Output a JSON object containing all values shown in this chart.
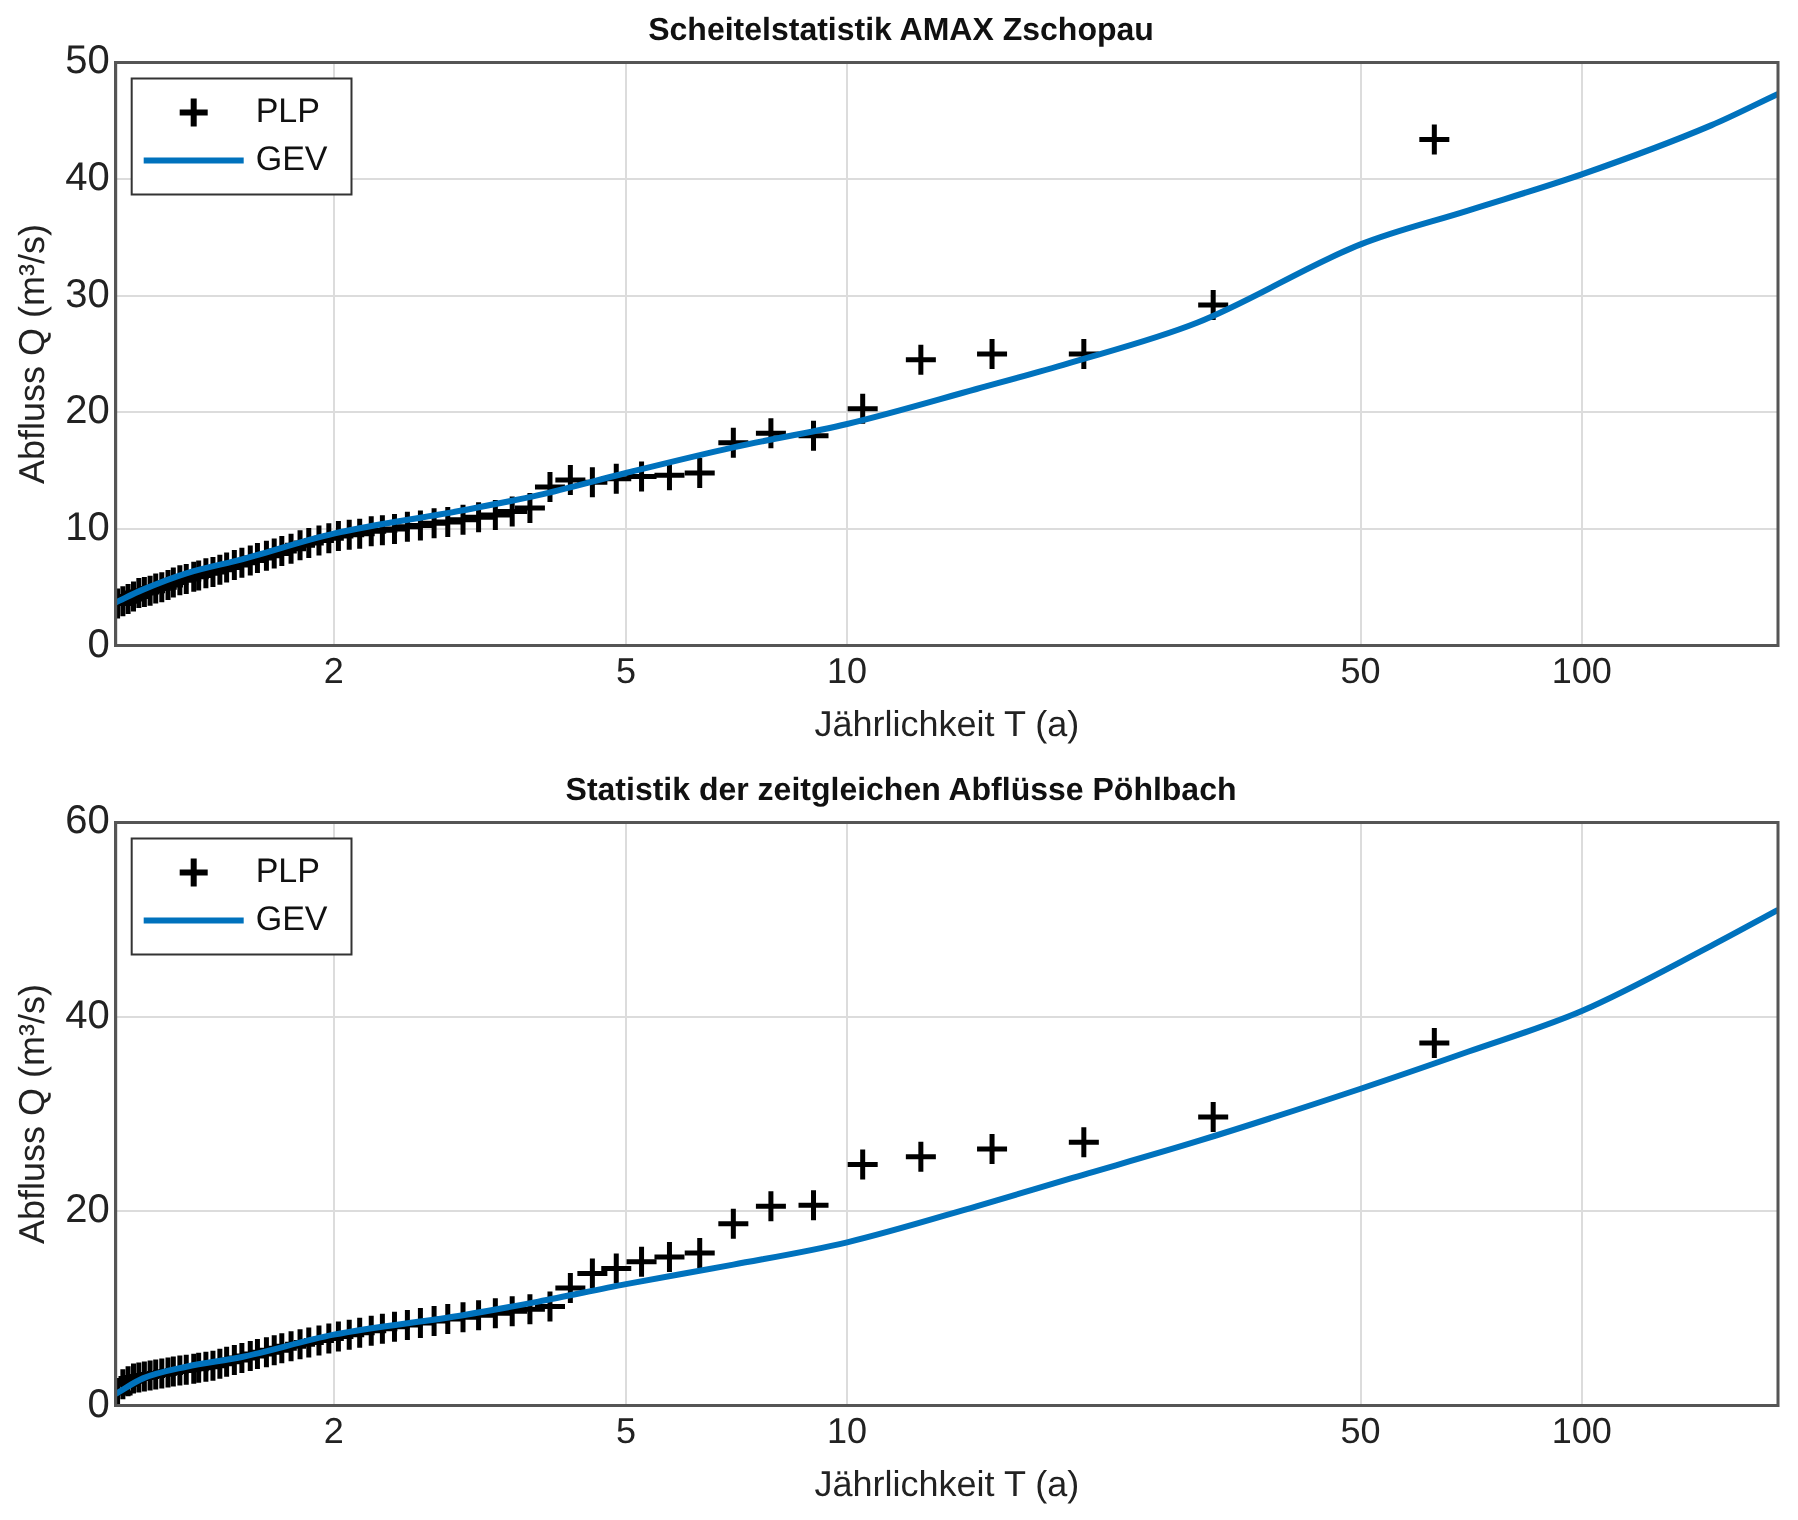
{
  "chart_data": [
    {
      "type": "scatter",
      "title": "Scheitelstatistik AMAX Zschopau",
      "xlabel": "Jährlichkeit T (a)",
      "ylabel": "Abfluss Q (m³/s)",
      "xlim": [
        1.01,
        185
      ],
      "xticks": [
        2,
        5,
        10,
        50,
        100
      ],
      "log": "x",
      "ylim": [
        0,
        50
      ],
      "yticks": [
        0,
        10,
        20,
        30,
        40,
        50
      ],
      "grid": true,
      "legend": "top left",
      "series": [
        {
          "name": "PLP",
          "type": "scatter",
          "marker": "cross",
          "color": "#000000",
          "x": [
            1.016,
            1.033,
            1.05,
            1.068,
            1.086,
            1.105,
            1.125,
            1.145,
            1.167,
            1.19,
            1.21,
            1.235,
            1.26,
            1.29,
            1.31,
            1.34,
            1.37,
            1.4,
            1.43,
            1.465,
            1.5,
            1.54,
            1.575,
            1.62,
            1.66,
            1.7,
            1.75,
            1.8,
            1.85,
            1.91,
            1.97,
            2.03,
            2.1,
            2.17,
            2.25,
            2.33,
            2.42,
            2.52,
            2.625,
            2.74,
            2.86,
            3.0,
            3.15,
            3.32,
            3.5,
            3.7,
            3.94,
            4.2,
            4.5,
            4.85,
            5.25,
            5.73,
            6.3,
            7.0,
            7.875,
            9.0,
            10.5,
            12.6,
            15.75,
            21.0,
            31.5,
            63.0
          ],
          "values": [
            3.6,
            3.8,
            4.0,
            4.2,
            4.5,
            4.6,
            4.7,
            4.9,
            5.0,
            5.2,
            5.4,
            5.6,
            5.7,
            5.9,
            6.0,
            6.2,
            6.3,
            6.5,
            6.7,
            6.9,
            7.1,
            7.3,
            7.5,
            7.7,
            7.9,
            8.1,
            8.3,
            8.6,
            8.8,
            9.0,
            9.2,
            9.4,
            9.5,
            9.6,
            9.8,
            9.9,
            10.0,
            10.2,
            10.3,
            10.5,
            10.6,
            10.8,
            11.0,
            11.2,
            11.5,
            11.8,
            13.6,
            14.2,
            14.0,
            14.3,
            14.5,
            14.6,
            14.8,
            17.4,
            18.2,
            18.0,
            20.3,
            24.5,
            25.0,
            25.0,
            29.2,
            43.4
          ]
        },
        {
          "name": "GEV",
          "type": "line",
          "marker": "none",
          "color": "#0072bd",
          "x": [
            1.01,
            1.1,
            1.26,
            1.5,
            2,
            3,
            3.8,
            5,
            7,
            10,
            15,
            20,
            30,
            50,
            70,
            100,
            150,
            185
          ],
          "values": [
            3.7,
            4.8,
            6.2,
            7.4,
            9.6,
            11.6,
            12.9,
            14.8,
            17.0,
            19.0,
            22.0,
            24.2,
            27.7,
            34.4,
            37.3,
            40.4,
            44.6,
            47.3
          ]
        }
      ]
    },
    {
      "type": "scatter",
      "title": "Statistik der zeitgleichen Abflüsse Pöhlbach",
      "xlabel": "Jährlichkeit T (a)",
      "ylabel": "Abfluss Q (m³/s)",
      "xlim": [
        1.01,
        185
      ],
      "xticks": [
        2,
        5,
        10,
        50,
        100
      ],
      "log": "x",
      "ylim": [
        0,
        60
      ],
      "yticks": [
        0,
        20,
        40,
        60
      ],
      "grid": true,
      "legend": "top left",
      "series": [
        {
          "name": "PLP",
          "type": "scatter",
          "marker": "cross",
          "color": "#000000",
          "x": [
            1.016,
            1.033,
            1.05,
            1.068,
            1.086,
            1.105,
            1.125,
            1.145,
            1.167,
            1.19,
            1.21,
            1.235,
            1.26,
            1.29,
            1.31,
            1.34,
            1.37,
            1.4,
            1.43,
            1.465,
            1.5,
            1.54,
            1.575,
            1.62,
            1.66,
            1.7,
            1.75,
            1.8,
            1.85,
            1.91,
            1.97,
            2.03,
            2.1,
            2.17,
            2.25,
            2.33,
            2.42,
            2.52,
            2.625,
            2.74,
            2.86,
            3.0,
            3.15,
            3.32,
            3.5,
            3.7,
            3.94,
            4.2,
            4.5,
            4.85,
            5.25,
            5.73,
            6.3,
            7.0,
            7.875,
            9.0,
            10.5,
            12.6,
            15.75,
            21.0,
            31.5,
            63.0
          ],
          "values": [
            1.3,
            2.2,
            2.5,
            2.8,
            2.9,
            3.0,
            3.1,
            3.2,
            3.3,
            3.4,
            3.5,
            3.6,
            3.7,
            3.8,
            3.9,
            4.0,
            4.1,
            4.3,
            4.5,
            4.7,
            4.9,
            5.1,
            5.3,
            5.5,
            5.7,
            5.9,
            6.1,
            6.3,
            6.5,
            6.7,
            6.9,
            7.1,
            7.3,
            7.5,
            7.7,
            7.9,
            8.1,
            8.3,
            8.5,
            8.7,
            8.9,
            9.1,
            9.3,
            9.5,
            9.7,
            9.9,
            10.2,
            12.1,
            13.6,
            14.1,
            14.8,
            15.3,
            15.7,
            18.7,
            20.5,
            20.6,
            24.8,
            25.6,
            26.4,
            27.1,
            29.7,
            37.3
          ]
        },
        {
          "name": "GEV",
          "type": "line",
          "marker": "none",
          "color": "#0072bd",
          "x": [
            1.01,
            1.1,
            1.26,
            1.5,
            2,
            3,
            3.8,
            5,
            7,
            10,
            15,
            20,
            30,
            50,
            70,
            100,
            150,
            185
          ],
          "values": [
            1.2,
            2.8,
            4.0,
            5.0,
            7.3,
            9.3,
            10.7,
            12.5,
            14.5,
            16.8,
            20.5,
            23.3,
            27.2,
            32.6,
            36.4,
            40.6,
            47.3,
            51.0
          ]
        }
      ]
    }
  ]
}
